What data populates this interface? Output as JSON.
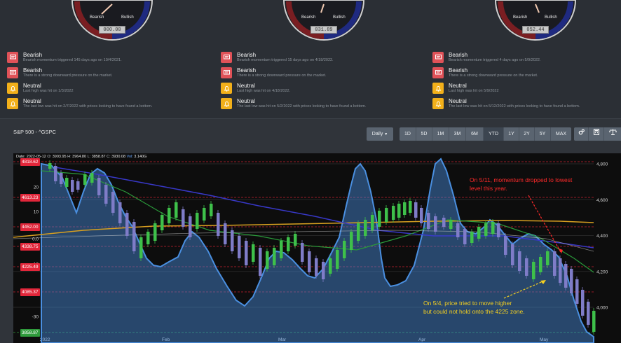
{
  "gauges": [
    {
      "bearish_label": "Bearish",
      "bullish_label": "Bullish",
      "value": "000.00"
    },
    {
      "bearish_label": "Bearish",
      "bullish_label": "Bullish",
      "value": "031.89"
    },
    {
      "bearish_label": "Bearish",
      "bullish_label": "Bullish",
      "value": "052.44"
    }
  ],
  "signal_columns": [
    [
      {
        "type": "bear",
        "title": "Bearish",
        "desc": "Bearish momentum triggered 145 days ago on 10/4/2021."
      },
      {
        "type": "bear",
        "title": "Bearish",
        "desc": "There is a strong downward pressure on the market."
      },
      {
        "type": "neut",
        "title": "Neutral",
        "desc": "Last high was hit on 1/3/2022"
      },
      {
        "type": "neut",
        "title": "Neutral",
        "desc": "The last low was hit on 2/7/2022 with prices looking to have found a bottom."
      }
    ],
    [
      {
        "type": "bear",
        "title": "Bearish",
        "desc": "Bearish momentum triggered 15 days ago on 4/18/2022."
      },
      {
        "type": "bear",
        "title": "Bearish",
        "desc": "There is a strong downward pressure on the market."
      },
      {
        "type": "neut",
        "title": "Neutral",
        "desc": "Last high was hit on 4/18/2022."
      },
      {
        "type": "neut",
        "title": "Neutral",
        "desc": "The last low was hit on 5/2/2022 with prices looking to have found a bottom."
      }
    ],
    [
      {
        "type": "bear",
        "title": "Bearish",
        "desc": "Bearish momentum triggered 4 days ago on 5/9/2022."
      },
      {
        "type": "bear",
        "title": "Bearish",
        "desc": "There is a strong downward pressure on the market."
      },
      {
        "type": "neut",
        "title": "Neutral",
        "desc": "Last high was hit on 5/9/2022"
      },
      {
        "type": "neut",
        "title": "Neutral",
        "desc": "The last low was hit on 5/12/2022 with prices looking to have found a bottom."
      }
    ]
  ],
  "chart": {
    "symbol": "S&P 500 - ^GSPC",
    "interval_label": "Daily",
    "ranges": [
      "1D",
      "5D",
      "1M",
      "3M",
      "6M",
      "YTD",
      "1Y",
      "2Y",
      "5Y",
      "MAX"
    ],
    "active_range": "YTD",
    "readout": {
      "date_label": "Date:",
      "date": "2022-05-12",
      "o_label": "O:",
      "o": "3903.95",
      "h_label": "H:",
      "h": "3964.80",
      "l_label": "L:",
      "l": "3858.87",
      "c_label": "C:",
      "c": "3930.08",
      "vol_label": "Vol:",
      "vol": "3.140G"
    },
    "price_levels": [
      "4818.62",
      "4613.23",
      "4452.00",
      "4338.75",
      "4225.49",
      "4085.37",
      "3858.87"
    ],
    "right_ticks": [
      "4,800",
      "4,600",
      "4,400",
      "4,200",
      "4,000"
    ],
    "left_ticks": [
      "20",
      "10",
      "0.0",
      "-10",
      "-20",
      "-30"
    ],
    "month_labels": [
      "2022",
      "Feb",
      "Mar",
      "Apr",
      "May"
    ],
    "annotation_red": [
      "On 5/11, momentum dropped to lowest",
      "level this year."
    ],
    "annotation_yellow": [
      "On 5/4, price tried to move higher",
      "but could not hold onto the 4225 zone."
    ]
  },
  "colors": {
    "bearish": "#e05258",
    "neutral": "#f2b01a",
    "momentum": "#4a8fe0",
    "annotation_red": "#ff2a2a",
    "annotation_yellow": "#f5d020"
  },
  "icons": {
    "bear": "message-icon",
    "neut": "bell-icon",
    "toolbar": [
      "settings-icon",
      "calculator-icon",
      "scale-icon"
    ]
  }
}
